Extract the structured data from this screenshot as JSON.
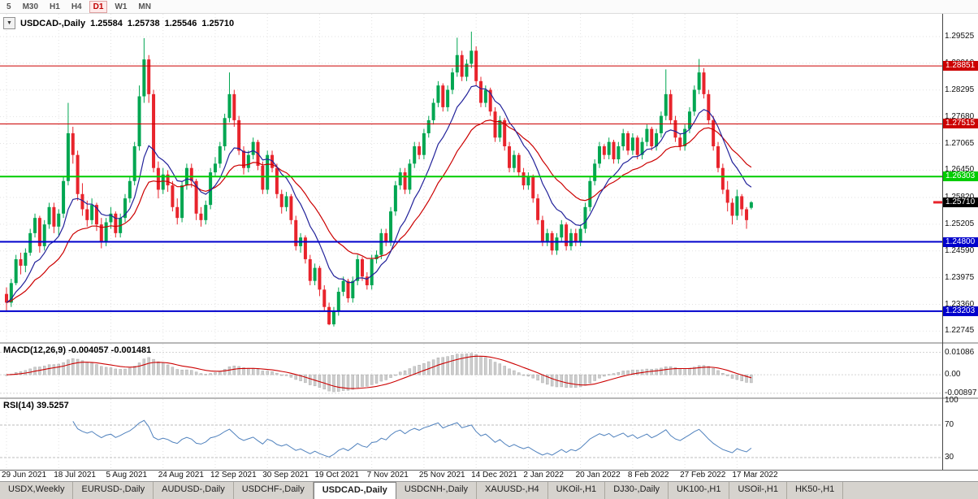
{
  "icons": {
    "dropdown": "▼"
  },
  "colors": {
    "up": "#00A651",
    "down": "#E8242C",
    "ma_fast": "#22229A",
    "ma_slow": "#CC0000",
    "macd_hist": "#CDCDCD",
    "macd_hist_border": "#9F9F9F",
    "macd_signal": "#CC0000",
    "rsi_line": "#4F81BD",
    "grid": "#E2E2E2",
    "current_badge": "#000000"
  },
  "toolbar": {
    "timeframes": [
      {
        "label": "5",
        "active": false
      },
      {
        "label": "M30",
        "active": false
      },
      {
        "label": "H1",
        "active": false
      },
      {
        "label": "H4",
        "active": false
      },
      {
        "label": "D1",
        "active": true
      },
      {
        "label": "W1",
        "active": false
      },
      {
        "label": "MN",
        "active": false
      }
    ]
  },
  "chart_header": {
    "symbol": "USDCAD-,Daily",
    "open": "1.25584",
    "high": "1.25738",
    "low": "1.25546",
    "close": "1.25710"
  },
  "price_axis": {
    "labels": [
      "1.29525",
      "1.28910",
      "1.28295",
      "1.27680",
      "1.27065",
      "1.26450",
      "1.25820",
      "1.25205",
      "1.24590",
      "1.23975",
      "1.23360",
      "1.22745"
    ]
  },
  "levels": [
    {
      "label": "1.28851",
      "price": 1.28851,
      "color": "#CC0000",
      "width": 1
    },
    {
      "label": "1.27515",
      "price": 1.27515,
      "color": "#CC0000",
      "width": 1
    },
    {
      "label": "1.26303",
      "price": 1.26303,
      "color": "#00CC00",
      "width": 2
    },
    {
      "label": "1.24800",
      "price": 1.248,
      "color": "#0000CC",
      "width": 2
    },
    {
      "label": "1.23203",
      "price": 1.23203,
      "color": "#0000CC",
      "width": 2
    }
  ],
  "current_price": {
    "label": "1.25710",
    "price": 1.2571
  },
  "macd": {
    "header": "MACD(12,26,9) -0.004057 -0.001481",
    "fast": 12,
    "slow": 26,
    "signal": 9,
    "axis": [
      {
        "label": "0.01086",
        "value": 0.01086
      },
      {
        "label": "0.00",
        "value": 0
      },
      {
        "label": "-0.00897",
        "value": -0.00897
      }
    ]
  },
  "rsi": {
    "header": "RSI(14) 39.5257",
    "period": 14,
    "value": "39.5257",
    "axis": [
      {
        "label": "100",
        "value": 100
      },
      {
        "label": "70",
        "value": 70
      },
      {
        "label": "30",
        "value": 30
      }
    ],
    "dashed_levels": [
      70,
      30
    ]
  },
  "tabs": [
    {
      "label": "USDX,Weekly",
      "active": false
    },
    {
      "label": "EURUSD-,Daily",
      "active": false
    },
    {
      "label": "AUDUSD-,Daily",
      "active": false
    },
    {
      "label": "USDCHF-,Daily",
      "active": false
    },
    {
      "label": "USDCAD-,Daily",
      "active": true
    },
    {
      "label": "USDCNH-,Daily",
      "active": false
    },
    {
      "label": "XAUUSD-,H4",
      "active": false
    },
    {
      "label": "UKOil-,H1",
      "active": false
    },
    {
      "label": "DJ30-,Daily",
      "active": false
    },
    {
      "label": "UK100-,H1",
      "active": false
    },
    {
      "label": "USOil-,H1",
      "active": false
    },
    {
      "label": "HK50-,H1",
      "active": false
    }
  ],
  "chart_data": {
    "type": "candlestick",
    "symbol": "USDCAD",
    "timeframe": "Daily",
    "price_range": {
      "max": 1.3005,
      "min": 1.2249
    },
    "tick_labels": [
      "29 Jun 2021",
      "18 Jul 2021",
      "5 Aug 2021",
      "24 Aug 2021",
      "12 Sep 2021",
      "30 Sep 2021",
      "19 Oct 2021",
      "7 Nov 2021",
      "25 Nov 2021",
      "14 Dec 2021",
      "2 Jan 2022",
      "20 Jan 2022",
      "8 Feb 2022",
      "27 Feb 2022",
      "17 Mar 2022"
    ],
    "tick_indices": [
      0,
      11,
      22,
      33,
      44,
      55,
      66,
      77,
      88,
      99,
      110,
      121,
      132,
      143,
      154
    ],
    "moving_averages": [
      {
        "period": 10,
        "color": "#22229A"
      },
      {
        "period": 22,
        "color": "#CC0000"
      }
    ],
    "ohlc": [
      [
        1.236,
        1.2375,
        1.232,
        1.234
      ],
      [
        1.234,
        1.2395,
        1.233,
        1.2385
      ],
      [
        1.2385,
        1.245,
        1.238,
        1.244
      ],
      [
        1.244,
        1.2455,
        1.2405,
        1.2425
      ],
      [
        1.2425,
        1.2465,
        1.241,
        1.2455
      ],
      [
        1.2455,
        1.251,
        1.2448,
        1.25
      ],
      [
        1.25,
        1.2545,
        1.249,
        1.2535
      ],
      [
        1.2535,
        1.254,
        1.2455,
        1.247
      ],
      [
        1.247,
        1.253,
        1.246,
        1.252
      ],
      [
        1.252,
        1.257,
        1.251,
        1.256
      ],
      [
        1.256,
        1.257,
        1.25,
        1.2515
      ],
      [
        1.2515,
        1.2555,
        1.2495,
        1.2545
      ],
      [
        1.2545,
        1.263,
        1.2535,
        1.262
      ],
      [
        1.262,
        1.28,
        1.261,
        1.273
      ],
      [
        1.273,
        1.2745,
        1.266,
        1.268
      ],
      [
        1.268,
        1.269,
        1.2575,
        1.259
      ],
      [
        1.259,
        1.2615,
        1.254,
        1.2555
      ],
      [
        1.2555,
        1.2575,
        1.2515,
        1.253
      ],
      [
        1.253,
        1.258,
        1.252,
        1.2565
      ],
      [
        1.2565,
        1.257,
        1.2505,
        1.252
      ],
      [
        1.252,
        1.2535,
        1.2465,
        1.248
      ],
      [
        1.248,
        1.2535,
        1.247,
        1.2525
      ],
      [
        1.2525,
        1.256,
        1.251,
        1.2545
      ],
      [
        1.2545,
        1.255,
        1.249,
        1.25
      ],
      [
        1.25,
        1.2545,
        1.249,
        1.2535
      ],
      [
        1.2535,
        1.259,
        1.2525,
        1.258
      ],
      [
        1.258,
        1.263,
        1.257,
        1.262
      ],
      [
        1.262,
        1.271,
        1.261,
        1.27
      ],
      [
        1.27,
        1.284,
        1.269,
        1.2815
      ],
      [
        1.2815,
        1.2949,
        1.28,
        1.29
      ],
      [
        1.29,
        1.291,
        1.28,
        1.282
      ],
      [
        1.282,
        1.283,
        1.264,
        1.265
      ],
      [
        1.265,
        1.2665,
        1.258,
        1.26
      ],
      [
        1.26,
        1.265,
        1.259,
        1.2635
      ],
      [
        1.2635,
        1.2645,
        1.2595,
        1.261
      ],
      [
        1.261,
        1.262,
        1.255,
        1.256
      ],
      [
        1.256,
        1.258,
        1.252,
        1.2535
      ],
      [
        1.2535,
        1.262,
        1.2525,
        1.261
      ],
      [
        1.261,
        1.266,
        1.26,
        1.265
      ],
      [
        1.265,
        1.266,
        1.2605,
        1.262
      ],
      [
        1.262,
        1.2625,
        1.253,
        1.2545
      ],
      [
        1.2545,
        1.256,
        1.2515,
        1.253
      ],
      [
        1.253,
        1.2575,
        1.252,
        1.2565
      ],
      [
        1.2565,
        1.265,
        1.2555,
        1.264
      ],
      [
        1.264,
        1.2675,
        1.263,
        1.266
      ],
      [
        1.266,
        1.271,
        1.265,
        1.27
      ],
      [
        1.27,
        1.2775,
        1.269,
        1.2765
      ],
      [
        1.2765,
        1.287,
        1.2755,
        1.282
      ],
      [
        1.282,
        1.283,
        1.2745,
        1.276
      ],
      [
        1.276,
        1.277,
        1.268,
        1.269
      ],
      [
        1.269,
        1.27,
        1.2635,
        1.265
      ],
      [
        1.265,
        1.269,
        1.264,
        1.268
      ],
      [
        1.268,
        1.272,
        1.267,
        1.271
      ],
      [
        1.271,
        1.2715,
        1.2645,
        1.2655
      ],
      [
        1.2655,
        1.2665,
        1.259,
        1.26
      ],
      [
        1.26,
        1.269,
        1.259,
        1.268
      ],
      [
        1.268,
        1.269,
        1.264,
        1.265
      ],
      [
        1.265,
        1.266,
        1.258,
        1.259
      ],
      [
        1.259,
        1.26,
        1.2545,
        1.256
      ],
      [
        1.256,
        1.2595,
        1.255,
        1.2585
      ],
      [
        1.2585,
        1.259,
        1.252,
        1.253
      ],
      [
        1.253,
        1.254,
        1.246,
        1.247
      ],
      [
        1.247,
        1.25,
        1.2455,
        1.249
      ],
      [
        1.249,
        1.2495,
        1.243,
        1.244
      ],
      [
        1.244,
        1.245,
        1.238,
        1.239
      ],
      [
        1.239,
        1.243,
        1.238,
        1.242
      ],
      [
        1.242,
        1.2425,
        1.2355,
        1.237
      ],
      [
        1.237,
        1.238,
        1.232,
        1.233
      ],
      [
        1.233,
        1.234,
        1.2288,
        1.229
      ],
      [
        1.229,
        1.233,
        1.2285,
        1.232
      ],
      [
        1.232,
        1.2375,
        1.231,
        1.2365
      ],
      [
        1.2365,
        1.24,
        1.2355,
        1.239
      ],
      [
        1.239,
        1.2395,
        1.234,
        1.235
      ],
      [
        1.235,
        1.24,
        1.234,
        1.239
      ],
      [
        1.239,
        1.245,
        1.238,
        1.244
      ],
      [
        1.244,
        1.2445,
        1.239,
        1.24
      ],
      [
        1.24,
        1.241,
        1.237,
        1.238
      ],
      [
        1.238,
        1.245,
        1.237,
        1.244
      ],
      [
        1.244,
        1.246,
        1.243,
        1.245
      ],
      [
        1.245,
        1.251,
        1.244,
        1.25
      ],
      [
        1.25,
        1.251,
        1.247,
        1.248
      ],
      [
        1.248,
        1.256,
        1.247,
        1.255
      ],
      [
        1.255,
        1.262,
        1.254,
        1.261
      ],
      [
        1.261,
        1.265,
        1.26,
        1.264
      ],
      [
        1.264,
        1.265,
        1.259,
        1.26
      ],
      [
        1.26,
        1.267,
        1.259,
        1.266
      ],
      [
        1.266,
        1.271,
        1.265,
        1.27
      ],
      [
        1.27,
        1.271,
        1.267,
        1.268
      ],
      [
        1.268,
        1.274,
        1.267,
        1.273
      ],
      [
        1.273,
        1.277,
        1.272,
        1.276
      ],
      [
        1.276,
        1.281,
        1.275,
        1.28
      ],
      [
        1.28,
        1.285,
        1.279,
        1.284
      ],
      [
        1.284,
        1.2845,
        1.278,
        1.279
      ],
      [
        1.279,
        1.284,
        1.278,
        1.283
      ],
      [
        1.283,
        1.288,
        1.282,
        1.287
      ],
      [
        1.287,
        1.295,
        1.286,
        1.291
      ],
      [
        1.291,
        1.292,
        1.285,
        1.286
      ],
      [
        1.286,
        1.29,
        1.285,
        1.289
      ],
      [
        1.289,
        1.2964,
        1.288,
        1.292
      ],
      [
        1.292,
        1.293,
        1.284,
        1.285
      ],
      [
        1.285,
        1.286,
        1.279,
        1.28
      ],
      [
        1.28,
        1.284,
        1.279,
        1.283
      ],
      [
        1.283,
        1.2835,
        1.277,
        1.278
      ],
      [
        1.278,
        1.279,
        1.271,
        1.272
      ],
      [
        1.272,
        1.277,
        1.271,
        1.276
      ],
      [
        1.276,
        1.2765,
        1.269,
        1.27
      ],
      [
        1.27,
        1.271,
        1.264,
        1.265
      ],
      [
        1.265,
        1.269,
        1.264,
        1.268
      ],
      [
        1.268,
        1.2685,
        1.263,
        1.264
      ],
      [
        1.264,
        1.265,
        1.26,
        1.261
      ],
      [
        1.261,
        1.264,
        1.26,
        1.263
      ],
      [
        1.263,
        1.2635,
        1.257,
        1.258
      ],
      [
        1.258,
        1.259,
        1.252,
        1.253
      ],
      [
        1.253,
        1.254,
        1.247,
        1.248
      ],
      [
        1.248,
        1.251,
        1.247,
        1.25
      ],
      [
        1.25,
        1.2505,
        1.245,
        1.246
      ],
      [
        1.246,
        1.25,
        1.245,
        1.249
      ],
      [
        1.249,
        1.253,
        1.248,
        1.252
      ],
      [
        1.252,
        1.2525,
        1.246,
        1.247
      ],
      [
        1.247,
        1.251,
        1.246,
        1.25
      ],
      [
        1.25,
        1.251,
        1.247,
        1.248
      ],
      [
        1.248,
        1.252,
        1.247,
        1.251
      ],
      [
        1.251,
        1.257,
        1.25,
        1.256
      ],
      [
        1.256,
        1.263,
        1.255,
        1.262
      ],
      [
        1.262,
        1.267,
        1.261,
        1.266
      ],
      [
        1.266,
        1.271,
        1.265,
        1.27
      ],
      [
        1.27,
        1.2705,
        1.267,
        1.268
      ],
      [
        1.268,
        1.272,
        1.267,
        1.271
      ],
      [
        1.271,
        1.2715,
        1.266,
        1.267
      ],
      [
        1.267,
        1.271,
        1.266,
        1.27
      ],
      [
        1.27,
        1.274,
        1.269,
        1.273
      ],
      [
        1.273,
        1.2735,
        1.268,
        1.269
      ],
      [
        1.269,
        1.273,
        1.268,
        1.272
      ],
      [
        1.272,
        1.2725,
        1.267,
        1.268
      ],
      [
        1.268,
        1.272,
        1.267,
        1.271
      ],
      [
        1.271,
        1.275,
        1.27,
        1.274
      ],
      [
        1.274,
        1.2745,
        1.269,
        1.27
      ],
      [
        1.27,
        1.274,
        1.269,
        1.273
      ],
      [
        1.273,
        1.278,
        1.272,
        1.277
      ],
      [
        1.277,
        1.2877,
        1.276,
        1.282
      ],
      [
        1.282,
        1.283,
        1.275,
        1.276
      ],
      [
        1.276,
        1.277,
        1.271,
        1.272
      ],
      [
        1.272,
        1.273,
        1.269,
        1.27
      ],
      [
        1.27,
        1.275,
        1.269,
        1.274
      ],
      [
        1.274,
        1.279,
        1.273,
        1.278
      ],
      [
        1.278,
        1.284,
        1.277,
        1.283
      ],
      [
        1.283,
        1.2901,
        1.282,
        1.287
      ],
      [
        1.287,
        1.288,
        1.281,
        1.282
      ],
      [
        1.282,
        1.283,
        1.275,
        1.276
      ],
      [
        1.276,
        1.277,
        1.269,
        1.27
      ],
      [
        1.27,
        1.271,
        1.264,
        1.265
      ],
      [
        1.265,
        1.266,
        1.259,
        1.26
      ],
      [
        1.26,
        1.262,
        1.255,
        1.257
      ],
      [
        1.257,
        1.258,
        1.252,
        1.254
      ],
      [
        1.254,
        1.26,
        1.253,
        1.2585
      ],
      [
        1.2585,
        1.259,
        1.254,
        1.2555
      ],
      [
        1.2555,
        1.256,
        1.251,
        1.253
      ],
      [
        1.25584,
        1.25738,
        1.25546,
        1.2571
      ]
    ]
  }
}
